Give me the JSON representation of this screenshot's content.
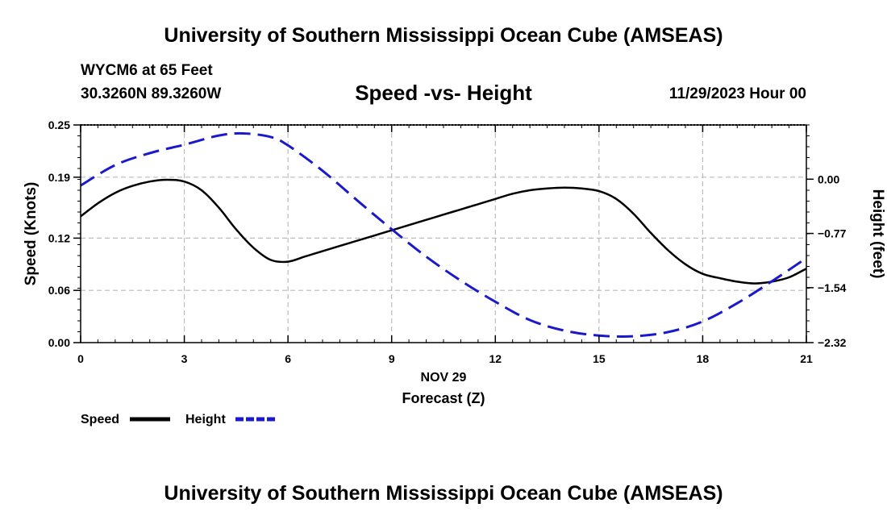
{
  "header": {
    "title": "University of Southern Mississippi Ocean Cube (AMSEAS)",
    "station": "WYCM6 at 65 Feet",
    "coords": "30.3260N  89.3260W",
    "subtitle": "Speed -vs- Height",
    "datetime": "11/29/2023 Hour 00"
  },
  "footer": {
    "title": "University of Southern Mississippi Ocean Cube (AMSEAS)"
  },
  "chart_data": {
    "type": "line",
    "title": "Speed -vs- Height",
    "xlabel": "Forecast (Z)",
    "xlabel_top": "NOV 29",
    "ylabel": "Speed (Knots)",
    "y2label": "Height (feet)",
    "xlim": [
      0,
      21
    ],
    "ylim": [
      0,
      0.25
    ],
    "y2lim": [
      -2.32,
      0.77
    ],
    "xticks": [
      0,
      3,
      6,
      9,
      12,
      15,
      18,
      21
    ],
    "yticks": [
      0.0,
      0.06,
      0.12,
      0.19,
      0.25
    ],
    "ytick_labels": [
      "0.00",
      "0.06",
      "0.12",
      "0.19",
      "0.25"
    ],
    "y2ticks": [
      -2.32,
      -1.54,
      -0.77,
      0.0
    ],
    "y2tick_labels": [
      "−2.32",
      "−1.54",
      "−0.77",
      "0.00"
    ],
    "grid": true,
    "legend_position": "bottom-left",
    "series": [
      {
        "name": "Speed",
        "axis": "left",
        "color": "#000000",
        "dash": "solid",
        "x": [
          0,
          0.5,
          1,
          1.5,
          2,
          2.5,
          3,
          3.5,
          4,
          4.5,
          5,
          5.5,
          6,
          6.5,
          7,
          7.5,
          8,
          8.5,
          9,
          9.5,
          10,
          10.5,
          11,
          11.5,
          12,
          12.5,
          13,
          13.5,
          14,
          14.5,
          15,
          15.5,
          16,
          16.5,
          17,
          17.5,
          18,
          18.5,
          19,
          19.5,
          20,
          20.5,
          21
        ],
        "y": [
          0.145,
          0.16,
          0.172,
          0.18,
          0.185,
          0.187,
          0.185,
          0.175,
          0.155,
          0.13,
          0.109,
          0.095,
          0.093,
          0.099,
          0.105,
          0.111,
          0.117,
          0.123,
          0.129,
          0.135,
          0.141,
          0.147,
          0.153,
          0.159,
          0.165,
          0.171,
          0.175,
          0.177,
          0.178,
          0.177,
          0.174,
          0.165,
          0.148,
          0.126,
          0.106,
          0.09,
          0.079,
          0.074,
          0.07,
          0.068,
          0.07,
          0.075,
          0.085
        ]
      },
      {
        "name": "Height",
        "axis": "right",
        "color": "#1a1acc",
        "dash": "dashed",
        "x": [
          0,
          1,
          2,
          3,
          4,
          4.7,
          5.5,
          6,
          7,
          8,
          9,
          10,
          11,
          12,
          13,
          14,
          15,
          16,
          17,
          18,
          19,
          20,
          21
        ],
        "y": [
          -0.09,
          0.2,
          0.37,
          0.49,
          0.62,
          0.65,
          0.6,
          0.48,
          0.12,
          -0.3,
          -0.71,
          -1.1,
          -1.44,
          -1.74,
          -2.0,
          -2.15,
          -2.22,
          -2.23,
          -2.17,
          -2.02,
          -1.76,
          -1.45,
          -1.12
        ]
      }
    ]
  }
}
